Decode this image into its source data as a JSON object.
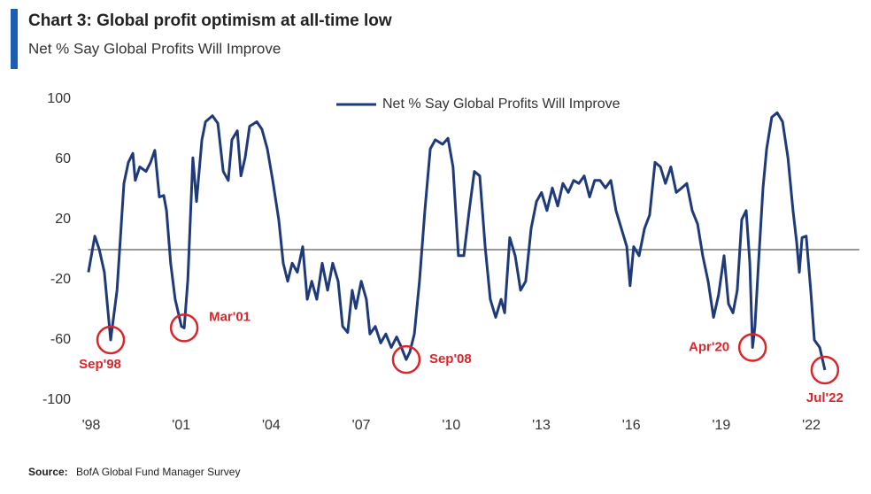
{
  "chart_data": {
    "type": "line",
    "title": "Chart 3: Global profit optimism at all-time low",
    "subtitle": "Net % Say Global Profits Will Improve",
    "source_label": "Source:",
    "source": "BofA Global Fund Manager Survey",
    "xlim": [
      1997.9,
      2023.6
    ],
    "ylim": [
      -100,
      100
    ],
    "xticks": [
      {
        "value": 1998,
        "label": "'98"
      },
      {
        "value": 2001,
        "label": "'01"
      },
      {
        "value": 2004,
        "label": "'04"
      },
      {
        "value": 2007,
        "label": "'07"
      },
      {
        "value": 2010,
        "label": "'10"
      },
      {
        "value": 2013,
        "label": "'13"
      },
      {
        "value": 2016,
        "label": "'16"
      },
      {
        "value": 2019,
        "label": "'19"
      },
      {
        "value": 2022,
        "label": "'22"
      }
    ],
    "yticks": [
      100,
      60,
      20,
      -20,
      -60,
      -100
    ],
    "reference_line": 0,
    "legend": "top",
    "grid": false,
    "series": [
      {
        "name": "Net % Say Global Profits Will Improve",
        "color": "#1f3a7a",
        "x": [
          1997.91,
          1998.12,
          1998.27,
          1998.44,
          1998.65,
          1998.86,
          1999.09,
          1999.24,
          1999.39,
          1999.47,
          1999.62,
          1999.83,
          1999.98,
          2000.12,
          2000.27,
          2000.42,
          2000.51,
          2000.65,
          2000.8,
          2001.01,
          2001.1,
          2001.22,
          2001.39,
          2001.51,
          2001.69,
          2001.81,
          2002.04,
          2002.22,
          2002.4,
          2002.57,
          2002.69,
          2002.87,
          2002.99,
          2003.13,
          2003.28,
          2003.52,
          2003.69,
          2003.87,
          2004.05,
          2004.25,
          2004.4,
          2004.55,
          2004.7,
          2004.87,
          2005.05,
          2005.2,
          2005.35,
          2005.52,
          2005.7,
          2005.88,
          2006.05,
          2006.23,
          2006.38,
          2006.55,
          2006.7,
          2006.82,
          2007.0,
          2007.17,
          2007.29,
          2007.47,
          2007.65,
          2007.82,
          2008.0,
          2008.18,
          2008.32,
          2008.5,
          2008.62,
          2008.77,
          2008.94,
          2009.12,
          2009.3,
          2009.47,
          2009.71,
          2009.89,
          2010.06,
          2010.24,
          2010.42,
          2010.6,
          2010.77,
          2010.95,
          2011.13,
          2011.3,
          2011.48,
          2011.66,
          2011.78,
          2011.95,
          2012.13,
          2012.31,
          2012.48,
          2012.66,
          2012.84,
          2013.01,
          2013.19,
          2013.37,
          2013.55,
          2013.72,
          2013.9,
          2014.08,
          2014.25,
          2014.43,
          2014.61,
          2014.78,
          2014.96,
          2015.14,
          2015.32,
          2015.49,
          2015.67,
          2015.85,
          2015.96,
          2016.08,
          2016.26,
          2016.44,
          2016.61,
          2016.79,
          2016.97,
          2017.14,
          2017.32,
          2017.5,
          2017.68,
          2017.85,
          2018.03,
          2018.21,
          2018.38,
          2018.56,
          2018.74,
          2018.91,
          2019.09,
          2019.24,
          2019.39,
          2019.53,
          2019.68,
          2019.83,
          2019.95,
          2020.04,
          2020.12,
          2020.24,
          2020.39,
          2020.51,
          2020.68,
          2020.86,
          2021.04,
          2021.22,
          2021.39,
          2021.51,
          2021.6,
          2021.69,
          2021.83,
          2021.98,
          2022.1,
          2022.28,
          2022.45
        ],
        "values": [
          -15,
          9,
          0,
          -15,
          -60,
          -27,
          44,
          58,
          64,
          46,
          55,
          52,
          58,
          66,
          35,
          36,
          26,
          -9,
          -33,
          -51,
          -52,
          -20,
          61,
          32,
          73,
          85,
          89,
          84,
          52,
          46,
          73,
          79,
          49,
          61,
          82,
          85,
          80,
          67,
          46,
          20,
          -9,
          -21,
          -9,
          -15,
          2,
          -33,
          -21,
          -33,
          -9,
          -27,
          -9,
          -21,
          -51,
          -55,
          -27,
          -39,
          -21,
          -33,
          -56,
          -51,
          -62,
          -56,
          -65,
          -58,
          -64,
          -73,
          -68,
          -56,
          -21,
          26,
          67,
          73,
          70,
          74,
          55,
          -4,
          -4,
          26,
          52,
          49,
          2,
          -33,
          -45,
          -33,
          -42,
          8,
          -4,
          -27,
          -21,
          14,
          32,
          38,
          26,
          41,
          29,
          44,
          38,
          46,
          44,
          49,
          35,
          46,
          46,
          41,
          46,
          26,
          14,
          2,
          -24,
          2,
          -4,
          14,
          23,
          58,
          55,
          44,
          55,
          38,
          41,
          44,
          26,
          17,
          -4,
          -21,
          -45,
          -30,
          -4,
          -36,
          -42,
          -27,
          20,
          26,
          -9,
          -65,
          -51,
          -9,
          41,
          67,
          88,
          91,
          85,
          61,
          26,
          5,
          -15,
          8,
          9,
          -27,
          -60,
          -65,
          -80
        ]
      }
    ],
    "annotations": [
      {
        "text": "Sep'98",
        "x": 1998.65,
        "y": -60
      },
      {
        "text": "Mar'01",
        "x": 2001.1,
        "y": -52
      },
      {
        "text": "Sep'08",
        "x": 2008.5,
        "y": -73
      },
      {
        "text": "Apr'20",
        "x": 2020.04,
        "y": -65
      },
      {
        "text": "Jul'22",
        "x": 2022.45,
        "y": -80
      }
    ]
  }
}
